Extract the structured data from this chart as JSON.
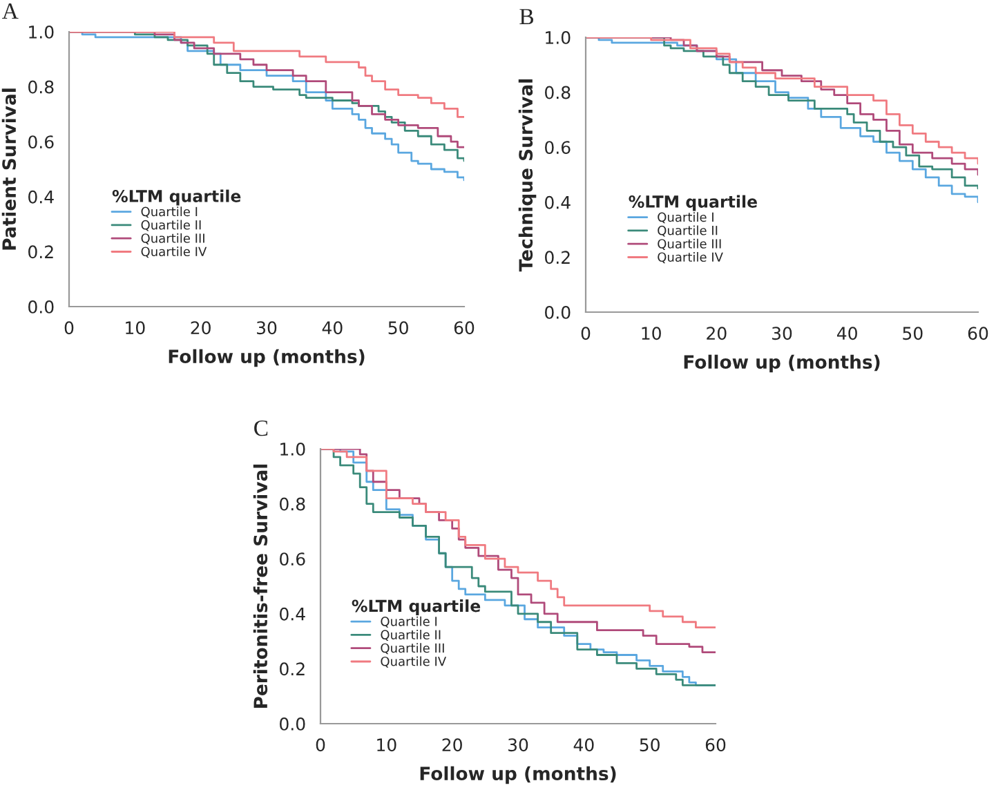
{
  "chart_data": [
    {
      "type": "step",
      "ylabel": "Patient Survival",
      "xlabel": "Follow up (months)",
      "legend_title": "%LTM quartile",
      "legend": "center left",
      "annotations": [
        "A"
      ],
      "xlim": [
        0,
        60
      ],
      "ylim": [
        0,
        1
      ],
      "xticks": [
        0,
        10,
        20,
        30,
        40,
        50,
        60
      ],
      "yticks": [
        {
          "value": 0,
          "label": "0.0"
        },
        {
          "value": 0.2,
          "label": "0.2"
        },
        {
          "value": 0.4,
          "label": "0.4"
        },
        {
          "value": 0.6,
          "label": "0.6"
        },
        {
          "value": 0.8,
          "label": "0.8"
        },
        {
          "value": 1,
          "label": "1.0"
        }
      ],
      "series": [
        {
          "name": "Quartile I",
          "color": "#5aa7e0",
          "x": [
            0,
            2,
            4,
            17,
            18,
            22,
            23,
            26,
            30,
            34,
            36,
            39,
            40,
            43,
            44,
            45,
            46,
            48,
            49,
            50,
            52,
            53,
            55,
            57,
            59,
            60
          ],
          "values": [
            1.0,
            0.99,
            0.98,
            0.96,
            0.93,
            0.92,
            0.88,
            0.86,
            0.84,
            0.82,
            0.78,
            0.75,
            0.72,
            0.7,
            0.68,
            0.65,
            0.63,
            0.61,
            0.59,
            0.56,
            0.53,
            0.52,
            0.5,
            0.49,
            0.47,
            0.46
          ]
        },
        {
          "name": "Quartile II",
          "color": "#3a8a7a",
          "x": [
            0,
            10,
            13,
            15,
            18,
            21,
            22,
            24,
            26,
            28,
            31,
            35,
            36,
            40,
            43,
            44,
            47,
            48,
            49,
            51,
            53,
            55,
            57,
            59,
            60
          ],
          "values": [
            1.0,
            0.99,
            0.98,
            0.97,
            0.95,
            0.92,
            0.88,
            0.85,
            0.82,
            0.8,
            0.79,
            0.77,
            0.76,
            0.75,
            0.74,
            0.73,
            0.71,
            0.69,
            0.67,
            0.64,
            0.62,
            0.59,
            0.57,
            0.54,
            0.53
          ]
        },
        {
          "name": "Quartile III",
          "color": "#b04a7a",
          "x": [
            0,
            13,
            16,
            17,
            19,
            22,
            26,
            28,
            30,
            34,
            36,
            39,
            43,
            44,
            46,
            48,
            50,
            53,
            56,
            58,
            59,
            60
          ],
          "values": [
            1.0,
            0.99,
            0.97,
            0.96,
            0.94,
            0.92,
            0.9,
            0.88,
            0.86,
            0.84,
            0.82,
            0.78,
            0.75,
            0.73,
            0.7,
            0.68,
            0.66,
            0.65,
            0.62,
            0.6,
            0.58,
            0.58
          ]
        },
        {
          "name": "Quartile IV",
          "color": "#f07a80",
          "x": [
            0,
            16,
            22,
            25,
            35,
            39,
            44,
            45,
            46,
            48,
            50,
            53,
            55,
            57,
            59,
            60
          ],
          "values": [
            1.0,
            0.98,
            0.96,
            0.93,
            0.91,
            0.89,
            0.87,
            0.84,
            0.82,
            0.79,
            0.77,
            0.76,
            0.74,
            0.72,
            0.69,
            0.69
          ]
        }
      ]
    },
    {
      "type": "step",
      "ylabel": "Technique Survival",
      "xlabel": "Follow up (months)",
      "legend_title": "%LTM quartile",
      "legend": "center left",
      "annotations": [
        "B"
      ],
      "xlim": [
        0,
        60
      ],
      "ylim": [
        0,
        1
      ],
      "xticks": [
        0,
        10,
        20,
        30,
        40,
        50,
        60
      ],
      "yticks": [
        {
          "value": 0,
          "label": "0.0"
        },
        {
          "value": 0.2,
          "label": "0.2"
        },
        {
          "value": 0.4,
          "label": "0.4"
        },
        {
          "value": 0.6,
          "label": "0.6"
        },
        {
          "value": 0.8,
          "label": "0.8"
        },
        {
          "value": 1,
          "label": "1.0"
        }
      ],
      "series": [
        {
          "name": "Quartile I",
          "color": "#5aa7e0",
          "x": [
            0,
            2,
            4,
            14,
            17,
            20,
            23,
            26,
            29,
            31,
            34,
            36,
            39,
            42,
            44,
            46,
            48,
            50,
            52,
            54,
            56,
            58,
            60
          ],
          "values": [
            1.0,
            0.99,
            0.98,
            0.97,
            0.95,
            0.92,
            0.87,
            0.84,
            0.8,
            0.78,
            0.74,
            0.71,
            0.67,
            0.64,
            0.62,
            0.58,
            0.55,
            0.52,
            0.49,
            0.46,
            0.43,
            0.42,
            0.4
          ]
        },
        {
          "name": "Quartile II",
          "color": "#3a8a7a",
          "x": [
            0,
            12,
            13,
            15,
            18,
            21,
            22,
            24,
            26,
            28,
            31,
            35,
            40,
            41,
            43,
            45,
            47,
            49,
            51,
            53,
            56,
            58,
            60
          ],
          "values": [
            1.0,
            0.97,
            0.96,
            0.95,
            0.93,
            0.9,
            0.87,
            0.84,
            0.82,
            0.79,
            0.77,
            0.74,
            0.72,
            0.69,
            0.66,
            0.62,
            0.6,
            0.57,
            0.53,
            0.52,
            0.49,
            0.46,
            0.45
          ]
        },
        {
          "name": "Quartile III",
          "color": "#b04a7a",
          "x": [
            0,
            13,
            15,
            17,
            20,
            22,
            27,
            30,
            33,
            36,
            38,
            40,
            42,
            44,
            46,
            48,
            50,
            53,
            56,
            58,
            60
          ],
          "values": [
            1.0,
            0.99,
            0.97,
            0.95,
            0.93,
            0.91,
            0.88,
            0.86,
            0.84,
            0.81,
            0.79,
            0.76,
            0.72,
            0.7,
            0.66,
            0.61,
            0.58,
            0.56,
            0.54,
            0.52,
            0.5
          ]
        },
        {
          "name": "Quartile IV",
          "color": "#f07a80",
          "x": [
            0,
            10,
            16,
            20,
            22,
            24,
            26,
            29,
            35,
            40,
            44,
            46,
            48,
            50,
            52,
            54,
            56,
            58,
            60
          ],
          "values": [
            1.0,
            0.99,
            0.96,
            0.94,
            0.91,
            0.89,
            0.87,
            0.85,
            0.82,
            0.79,
            0.77,
            0.72,
            0.68,
            0.65,
            0.62,
            0.6,
            0.58,
            0.56,
            0.54
          ]
        }
      ]
    },
    {
      "type": "step",
      "ylabel": "Peritonitis-free Survival",
      "xlabel": "Follow up (months)",
      "legend_title": "%LTM quartile",
      "legend": "lower left",
      "annotations": [
        "C"
      ],
      "xlim": [
        0,
        60
      ],
      "ylim": [
        0,
        1
      ],
      "xticks": [
        0,
        10,
        20,
        30,
        40,
        50,
        60
      ],
      "yticks": [
        {
          "value": 0,
          "label": "0.0"
        },
        {
          "value": 0.2,
          "label": "0.2"
        },
        {
          "value": 0.4,
          "label": "0.4"
        },
        {
          "value": 0.6,
          "label": "0.6"
        },
        {
          "value": 0.8,
          "label": "0.8"
        },
        {
          "value": 1,
          "label": "1.0"
        }
      ],
      "series": [
        {
          "name": "Quartile I",
          "color": "#5aa7e0",
          "x": [
            0,
            3,
            5,
            7,
            8,
            10,
            12,
            14,
            16,
            18,
            19,
            20,
            21,
            22,
            25,
            28,
            31,
            33,
            37,
            39,
            41,
            43,
            45,
            48,
            50,
            52,
            55,
            56,
            57,
            60
          ],
          "values": [
            1.0,
            0.99,
            0.95,
            0.88,
            0.85,
            0.78,
            0.76,
            0.72,
            0.67,
            0.62,
            0.57,
            0.52,
            0.49,
            0.47,
            0.45,
            0.43,
            0.38,
            0.35,
            0.32,
            0.29,
            0.27,
            0.26,
            0.25,
            0.23,
            0.21,
            0.19,
            0.17,
            0.15,
            0.14,
            0.14
          ]
        },
        {
          "name": "Quartile II",
          "color": "#3a8a7a",
          "x": [
            0,
            2,
            3,
            5,
            6,
            7,
            8,
            12,
            14,
            16,
            18,
            19,
            22,
            23,
            24,
            25,
            29,
            30,
            33,
            35,
            39,
            42,
            45,
            48,
            51,
            54,
            55,
            60
          ],
          "values": [
            1.0,
            0.97,
            0.94,
            0.91,
            0.86,
            0.8,
            0.77,
            0.75,
            0.72,
            0.68,
            0.62,
            0.57,
            0.57,
            0.53,
            0.5,
            0.48,
            0.43,
            0.4,
            0.37,
            0.33,
            0.27,
            0.25,
            0.22,
            0.2,
            0.18,
            0.16,
            0.14,
            0.14
          ]
        },
        {
          "name": "Quartile III",
          "color": "#b04a7a",
          "x": [
            0,
            6,
            7,
            8,
            10,
            12,
            15,
            16,
            18,
            20,
            21,
            22,
            24,
            27,
            29,
            30,
            32,
            34,
            36,
            42,
            49,
            51,
            56,
            58,
            60
          ],
          "values": [
            1.0,
            0.98,
            0.92,
            0.88,
            0.85,
            0.82,
            0.8,
            0.77,
            0.74,
            0.71,
            0.67,
            0.64,
            0.61,
            0.56,
            0.53,
            0.47,
            0.44,
            0.4,
            0.37,
            0.34,
            0.32,
            0.29,
            0.28,
            0.26,
            0.26
          ]
        },
        {
          "name": "Quartile IV",
          "color": "#f07a80",
          "x": [
            0,
            2,
            4,
            7,
            10,
            14,
            16,
            19,
            21,
            22,
            25,
            28,
            30,
            33,
            35,
            36,
            37,
            50,
            52,
            55,
            57,
            60
          ],
          "values": [
            1.0,
            0.99,
            0.97,
            0.92,
            0.82,
            0.8,
            0.77,
            0.74,
            0.68,
            0.65,
            0.6,
            0.57,
            0.55,
            0.52,
            0.49,
            0.46,
            0.43,
            0.41,
            0.39,
            0.37,
            0.35,
            0.35
          ]
        }
      ]
    }
  ]
}
